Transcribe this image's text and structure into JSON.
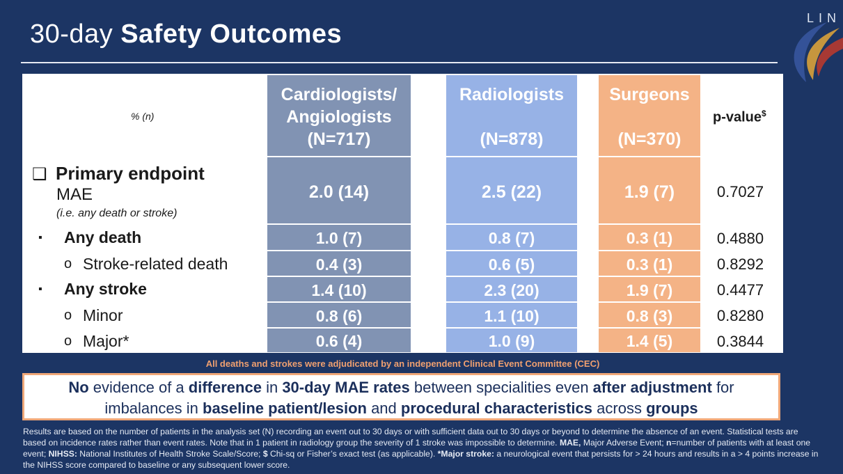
{
  "title": {
    "prefix": "30-day ",
    "bold": "Safety Outcomes"
  },
  "logo": {
    "text": "LIN"
  },
  "table": {
    "corner_label": "% (n)",
    "columns": [
      {
        "name": "Cardiologists/ Angiologists",
        "n": "(N=717)",
        "color": "#8193b3"
      },
      {
        "name": "Radiologists",
        "n": "(N=878)",
        "color": "#97b2e6"
      },
      {
        "name": "Surgeons",
        "n": "(N=370)",
        "color": "#f4b386"
      }
    ],
    "pvalue_header": "p-value",
    "pvalue_sup": "$",
    "primary": {
      "checkbox": "❑",
      "title": "Primary endpoint",
      "subtitle": "MAE",
      "note": "(i.e. any death or stroke)",
      "values": [
        "2.0 (14)",
        "2.5 (22)",
        "1.9 (7)"
      ],
      "p": "0.7027"
    },
    "rows": [
      {
        "bullet": "▪",
        "label": "Any death",
        "values": [
          "1.0 (7)",
          "0.8 (7)",
          "0.3 (1)"
        ],
        "p": "0.4880"
      },
      {
        "bullet": "o",
        "label": "Stroke-related death",
        "values": [
          "0.4 (3)",
          "0.6 (5)",
          "0.3 (1)"
        ],
        "p": "0.8292"
      },
      {
        "bullet": "▪",
        "label": "Any stroke",
        "values": [
          "1.4 (10)",
          "2.3 (20)",
          "1.9 (7)"
        ],
        "p": "0.4477"
      },
      {
        "bullet": "o",
        "label": "Minor",
        "values": [
          "0.8 (6)",
          "1.1 (10)",
          "0.8 (3)"
        ],
        "p": "0.8280"
      },
      {
        "bullet": "o",
        "label": "Major*",
        "values": [
          "0.6 (4)",
          "1.0 (9)",
          "1.4 (5)"
        ],
        "p": "0.3844"
      }
    ]
  },
  "adjudication_note": "All deaths and strokes were adjudicated by an independent Clinical Event Committee (CEC)",
  "conclusion": {
    "p1": "No",
    "t1": " evidence of a ",
    "p2": "difference",
    "t2": " in ",
    "p3": "30-day MAE rates",
    "t3": " between specialities even ",
    "p4": "after adjustment",
    "t4": " for",
    "t5": "imbalances in ",
    "p5": "baseline patient/lesion",
    "t6": " and ",
    "p6": "procedural characteristics",
    "t7": " across ",
    "p7": "groups"
  },
  "footnote": {
    "a": "Results are based on the number of patients in the analysis set (N) recording an event out to 30 days or with sufficient data out to 30 days or beyond to determine the absence of an event. Statistical tests are based on incidence rates rather than event rates. Note that in 1 patient in radiology group the severity of 1 stroke was impossible to determine. ",
    "b1": "MAE,",
    "c1": " Major Adverse Event; ",
    "b2": "n",
    "c2": "=number of patients with at least one event; ",
    "b3": "NIHSS:",
    "c3": " National Institutes of Health Stroke Scale/Score; ",
    "b4": "$",
    "c4": " Chi-sq or Fisher’s exact test (as applicable). ",
    "b5": "*Major stroke:",
    "c5": " a neurological event that persists for > 24 hours and results in a > 4 points increase in the NIHSS score compared to baseline or any subsequent lower score."
  }
}
